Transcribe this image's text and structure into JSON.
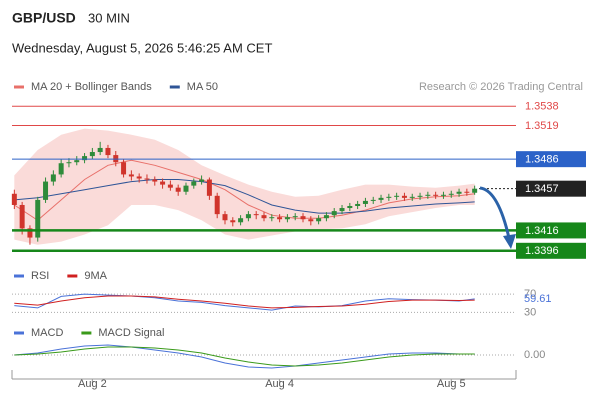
{
  "header": {
    "symbol": "GBP/USD",
    "interval": "30 MIN",
    "timestamp": "Wednesday, August 5, 2026 5:46:25 AM CET",
    "credit": "Research © 2026 Trading Central"
  },
  "chart_data": [
    {
      "type": "candlestick",
      "xlim": [
        -0.3,
        59.3
      ],
      "ylim": [
        1.3385,
        1.3549
      ],
      "up_color": "#2e8b3a",
      "down_color": "#d0342c",
      "open": [
        1.3452,
        1.3441,
        1.3418,
        1.3409,
        1.3446,
        1.3464,
        1.3471,
        1.3482,
        1.3483,
        1.3485,
        1.3489,
        1.3493,
        1.3497,
        1.349,
        1.3483,
        1.3471,
        1.3469,
        1.3467,
        1.3466,
        1.3464,
        1.3461,
        1.3458,
        1.3454,
        1.346,
        1.3464,
        1.3466,
        1.345,
        1.3432,
        1.3426,
        1.3424,
        1.3428,
        1.3432,
        1.3431,
        1.3428,
        1.3429,
        1.3427,
        1.3429,
        1.343,
        1.3427,
        1.3425,
        1.3428,
        1.3431,
        1.3435,
        1.3438,
        1.344,
        1.3442,
        1.3445,
        1.3446,
        1.3448,
        1.3449,
        1.345,
        1.3448,
        1.3449,
        1.345,
        1.3451,
        1.345,
        1.3451,
        1.3452,
        1.3454,
        1.3453
      ],
      "high": [
        1.3456,
        1.3444,
        1.3421,
        1.3449,
        1.3468,
        1.3475,
        1.3486,
        1.3487,
        1.3489,
        1.3492,
        1.3497,
        1.3503,
        1.35,
        1.3494,
        1.3486,
        1.3475,
        1.3472,
        1.3471,
        1.3469,
        1.3467,
        1.3465,
        1.3461,
        1.3463,
        1.3467,
        1.347,
        1.3468,
        1.3453,
        1.3435,
        1.3429,
        1.3431,
        1.3435,
        1.3435,
        1.3434,
        1.3432,
        1.3432,
        1.3432,
        1.3433,
        1.3433,
        1.343,
        1.3431,
        1.3434,
        1.3438,
        1.3441,
        1.3443,
        1.3445,
        1.3448,
        1.3449,
        1.3451,
        1.3452,
        1.3453,
        1.3453,
        1.3452,
        1.3453,
        1.3454,
        1.3454,
        1.3454,
        1.3455,
        1.3457,
        1.3457,
        1.346
      ],
      "low": [
        1.3437,
        1.3412,
        1.3402,
        1.3405,
        1.3443,
        1.346,
        1.3468,
        1.3478,
        1.348,
        1.3482,
        1.3486,
        1.349,
        1.3487,
        1.3479,
        1.3468,
        1.3465,
        1.3463,
        1.3462,
        1.346,
        1.3457,
        1.3455,
        1.345,
        1.3451,
        1.3457,
        1.3461,
        1.3446,
        1.3428,
        1.3422,
        1.342,
        1.3421,
        1.3425,
        1.3427,
        1.3425,
        1.3425,
        1.3424,
        1.3424,
        1.3426,
        1.3424,
        1.3421,
        1.3422,
        1.3425,
        1.3428,
        1.3432,
        1.3435,
        1.3437,
        1.3439,
        1.3442,
        1.3443,
        1.3445,
        1.3446,
        1.3445,
        1.3445,
        1.3446,
        1.3447,
        1.3447,
        1.3447,
        1.3448,
        1.3449,
        1.345,
        1.3451
      ],
      "close": [
        1.3441,
        1.3418,
        1.3409,
        1.3446,
        1.3464,
        1.3471,
        1.3482,
        1.3483,
        1.3485,
        1.3489,
        1.3493,
        1.3497,
        1.349,
        1.3483,
        1.3471,
        1.3469,
        1.3467,
        1.3466,
        1.3464,
        1.3461,
        1.3458,
        1.3454,
        1.346,
        1.3464,
        1.3466,
        1.345,
        1.3432,
        1.3426,
        1.3424,
        1.3428,
        1.3432,
        1.3431,
        1.3428,
        1.3429,
        1.3427,
        1.3429,
        1.343,
        1.3427,
        1.3425,
        1.3428,
        1.3431,
        1.3435,
        1.3438,
        1.344,
        1.3442,
        1.3445,
        1.3446,
        1.3448,
        1.3449,
        1.345,
        1.3448,
        1.3449,
        1.345,
        1.3451,
        1.345,
        1.3451,
        1.3452,
        1.3454,
        1.3453,
        1.3457
      ],
      "series": [
        {
          "name": "MA 20 + Bollinger Bands",
          "color": "#e8706a",
          "band_color": "#f8cfcc",
          "x": [
            0,
            3,
            6,
            9,
            12,
            15,
            18,
            21,
            24,
            27,
            30,
            33,
            36,
            39,
            42,
            45,
            48,
            51,
            54,
            57,
            59
          ],
          "values": [
            1.3441,
            1.3426,
            1.3446,
            1.3466,
            1.348,
            1.3485,
            1.348,
            1.3473,
            1.3466,
            1.3456,
            1.3441,
            1.3431,
            1.3428,
            1.3428,
            1.3431,
            1.3436,
            1.3443,
            1.3447,
            1.3449,
            1.345,
            1.3452
          ],
          "upper": [
            1.347,
            1.3495,
            1.351,
            1.3516,
            1.3514,
            1.351,
            1.3505,
            1.3495,
            1.348,
            1.347,
            1.3461,
            1.3454,
            1.3449,
            1.345,
            1.3456,
            1.3461,
            1.3461,
            1.3459,
            1.3458,
            1.346,
            1.3462
          ],
          "lower": [
            1.3407,
            1.3402,
            1.3405,
            1.3412,
            1.3421,
            1.3441,
            1.3441,
            1.3436,
            1.3426,
            1.3412,
            1.3407,
            1.3411,
            1.3415,
            1.3417,
            1.3418,
            1.3422,
            1.343,
            1.3434,
            1.3438,
            1.3441,
            1.3441
          ]
        },
        {
          "name": "MA 50",
          "color": "#2f5597",
          "x": [
            0,
            3,
            6,
            9,
            12,
            15,
            18,
            21,
            24,
            27,
            30,
            33,
            36,
            39,
            42,
            45,
            48,
            51,
            54,
            57,
            59
          ],
          "values": [
            1.3446,
            1.3448,
            1.3452,
            1.3456,
            1.346,
            1.3464,
            1.3466,
            1.3466,
            1.3464,
            1.346,
            1.3451,
            1.3441,
            1.3436,
            1.3433,
            1.3433,
            1.3435,
            1.3438,
            1.344,
            1.3442,
            1.3443,
            1.3444
          ]
        }
      ],
      "levels": [
        {
          "value": 1.3538,
          "color": "#e04848",
          "style": "thin",
          "boxed": false
        },
        {
          "value": 1.3519,
          "color": "#e04848",
          "style": "thin",
          "boxed": false
        },
        {
          "value": 1.3486,
          "color": "#2b62c8",
          "style": "thin",
          "boxed": true
        },
        {
          "value": 1.3457,
          "color": "#222222",
          "style": "dotted",
          "boxed": true
        },
        {
          "value": 1.3416,
          "color": "#16871a",
          "style": "thick",
          "boxed": true
        },
        {
          "value": 1.3396,
          "color": "#16871a",
          "style": "thick",
          "boxed": true
        }
      ]
    },
    {
      "type": "line",
      "xlim": [
        -0.3,
        59.3
      ],
      "ylim": [
        20,
        90
      ],
      "yticks": [
        30,
        70
      ],
      "series": [
        {
          "name": "RSI",
          "color": "#4a72d8",
          "show_last": true,
          "x": [
            0,
            3,
            6,
            9,
            12,
            15,
            18,
            21,
            24,
            27,
            30,
            33,
            36,
            39,
            42,
            45,
            48,
            51,
            54,
            57,
            59
          ],
          "values": [
            45,
            40,
            65,
            70,
            68,
            66,
            62,
            55,
            52,
            45,
            40,
            35,
            44,
            42,
            45,
            55,
            60,
            58,
            57,
            55,
            59.61
          ]
        },
        {
          "name": "9MA",
          "color": "#d02020",
          "x": [
            0,
            3,
            6,
            9,
            12,
            15,
            18,
            21,
            24,
            27,
            30,
            33,
            36,
            39,
            42,
            45,
            48,
            51,
            54,
            57,
            59
          ],
          "values": [
            50,
            46,
            55,
            62,
            66,
            66,
            64,
            59,
            55,
            50,
            44,
            40,
            41,
            43,
            44,
            48,
            54,
            57,
            57,
            56,
            57
          ]
        }
      ]
    },
    {
      "type": "line",
      "xlim": [
        -0.3,
        59.3
      ],
      "ylim": [
        -0.0025,
        0.0025
      ],
      "yticks": [
        {
          "value": 0,
          "label": "0.00"
        }
      ],
      "xticks": [
        {
          "value": 10,
          "label": "Aug 2"
        },
        {
          "value": 34,
          "label": "Aug 4"
        },
        {
          "value": 56,
          "label": "Aug 5"
        }
      ],
      "series": [
        {
          "name": "MACD",
          "color": "#4a72d8",
          "x": [
            0,
            3,
            6,
            9,
            12,
            15,
            18,
            21,
            24,
            27,
            30,
            33,
            36,
            39,
            42,
            45,
            48,
            51,
            54,
            57,
            59
          ],
          "values": [
            0,
            0.0002,
            0.0006,
            0.0009,
            0.001,
            0.0008,
            0.0005,
            0.0002,
            -0.0002,
            -0.0008,
            -0.0012,
            -0.0013,
            -0.0011,
            -0.0008,
            -0.0005,
            -0.0002,
            0.0001,
            0.0002,
            0.0002,
            0.0001,
            0.0001
          ]
        },
        {
          "name": "MACD Signal",
          "color": "#3a9a1a",
          "x": [
            0,
            3,
            6,
            9,
            12,
            15,
            18,
            21,
            24,
            27,
            30,
            33,
            36,
            39,
            42,
            45,
            48,
            51,
            54,
            57,
            59
          ],
          "values": [
            0,
            0.0001,
            0.0003,
            0.0006,
            0.0008,
            0.0008,
            0.0007,
            0.0005,
            0.0002,
            -0.0003,
            -0.0007,
            -0.001,
            -0.0011,
            -0.001,
            -0.0008,
            -0.0005,
            -0.0002,
            0,
            0.0001,
            0.0001,
            0.0001
          ]
        }
      ]
    }
  ]
}
